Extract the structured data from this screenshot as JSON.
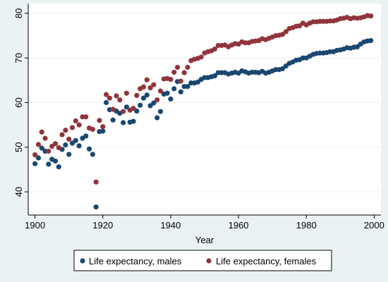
{
  "chart_data": {
    "type": "scatter",
    "title": "",
    "xlabel": "Year",
    "ylabel": "",
    "xlim": [
      1898,
      2002
    ],
    "ylim": [
      34.8,
      82.2
    ],
    "x_ticks": [
      "1900",
      "1920",
      "1940",
      "1960",
      "1980",
      "2000"
    ],
    "y_ticks": [
      "40",
      "50",
      "60",
      "70",
      "80"
    ],
    "grid": true,
    "legend_position": "bottom",
    "series": [
      {
        "name": "Life expectancy, males",
        "color": "#1a476f",
        "points": [
          [
            1900,
            46.3
          ],
          [
            1901,
            47.6
          ],
          [
            1902,
            49.8
          ],
          [
            1903,
            49.1
          ],
          [
            1904,
            46.2
          ],
          [
            1905,
            47.3
          ],
          [
            1906,
            46.9
          ],
          [
            1907,
            45.6
          ],
          [
            1908,
            49.5
          ],
          [
            1909,
            50.5
          ],
          [
            1910,
            48.4
          ],
          [
            1911,
            50.9
          ],
          [
            1912,
            51.5
          ],
          [
            1913,
            50.3
          ],
          [
            1914,
            52.0
          ],
          [
            1915,
            52.5
          ],
          [
            1916,
            49.6
          ],
          [
            1917,
            48.4
          ],
          [
            1918,
            36.6
          ],
          [
            1919,
            53.5
          ],
          [
            1920,
            53.6
          ],
          [
            1921,
            60.0
          ],
          [
            1922,
            58.4
          ],
          [
            1923,
            56.1
          ],
          [
            1924,
            58.1
          ],
          [
            1925,
            57.6
          ],
          [
            1926,
            55.5
          ],
          [
            1927,
            59.0
          ],
          [
            1928,
            55.6
          ],
          [
            1929,
            55.8
          ],
          [
            1930,
            58.1
          ],
          [
            1931,
            59.4
          ],
          [
            1932,
            61.0
          ],
          [
            1933,
            61.7
          ],
          [
            1934,
            59.3
          ],
          [
            1935,
            59.9
          ],
          [
            1936,
            56.6
          ],
          [
            1937,
            58.0
          ],
          [
            1938,
            61.9
          ],
          [
            1939,
            62.1
          ],
          [
            1940,
            60.8
          ],
          [
            1941,
            63.1
          ],
          [
            1942,
            64.7
          ],
          [
            1943,
            62.4
          ],
          [
            1944,
            63.6
          ],
          [
            1945,
            63.6
          ],
          [
            1946,
            64.4
          ],
          [
            1947,
            64.4
          ],
          [
            1948,
            64.6
          ],
          [
            1949,
            65.2
          ],
          [
            1950,
            65.6
          ],
          [
            1951,
            65.6
          ],
          [
            1952,
            65.8
          ],
          [
            1953,
            66.0
          ],
          [
            1954,
            66.7
          ],
          [
            1955,
            66.7
          ],
          [
            1956,
            66.7
          ],
          [
            1957,
            66.4
          ],
          [
            1958,
            66.6
          ],
          [
            1959,
            66.8
          ],
          [
            1960,
            66.6
          ],
          [
            1961,
            67.1
          ],
          [
            1962,
            66.9
          ],
          [
            1963,
            66.6
          ],
          [
            1964,
            66.8
          ],
          [
            1965,
            66.8
          ],
          [
            1966,
            66.7
          ],
          [
            1967,
            67.0
          ],
          [
            1968,
            66.6
          ],
          [
            1969,
            66.8
          ],
          [
            1970,
            67.1
          ],
          [
            1971,
            67.4
          ],
          [
            1972,
            67.4
          ],
          [
            1973,
            67.6
          ],
          [
            1974,
            68.2
          ],
          [
            1975,
            68.8
          ],
          [
            1976,
            69.1
          ],
          [
            1977,
            69.5
          ],
          [
            1978,
            69.6
          ],
          [
            1979,
            70.0
          ],
          [
            1980,
            70.0
          ],
          [
            1981,
            70.4
          ],
          [
            1982,
            70.8
          ],
          [
            1983,
            71.0
          ],
          [
            1984,
            71.1
          ],
          [
            1985,
            71.1
          ],
          [
            1986,
            71.2
          ],
          [
            1987,
            71.4
          ],
          [
            1988,
            71.4
          ],
          [
            1989,
            71.7
          ],
          [
            1990,
            71.8
          ],
          [
            1991,
            72.0
          ],
          [
            1992,
            72.3
          ],
          [
            1993,
            72.2
          ],
          [
            1994,
            72.4
          ],
          [
            1995,
            72.5
          ],
          [
            1996,
            73.1
          ],
          [
            1997,
            73.6
          ],
          [
            1998,
            73.8
          ],
          [
            1999,
            73.9
          ]
        ]
      },
      {
        "name": "Life expectancy, females",
        "color": "#90353b",
        "points": [
          [
            1900,
            48.3
          ],
          [
            1901,
            50.6
          ],
          [
            1902,
            53.4
          ],
          [
            1903,
            52.0
          ],
          [
            1904,
            49.1
          ],
          [
            1905,
            50.2
          ],
          [
            1906,
            50.8
          ],
          [
            1907,
            49.9
          ],
          [
            1908,
            52.8
          ],
          [
            1909,
            53.8
          ],
          [
            1910,
            51.8
          ],
          [
            1911,
            54.4
          ],
          [
            1912,
            55.9
          ],
          [
            1913,
            55.0
          ],
          [
            1914,
            56.8
          ],
          [
            1915,
            56.8
          ],
          [
            1916,
            54.3
          ],
          [
            1917,
            54.0
          ],
          [
            1918,
            42.2
          ],
          [
            1919,
            56.0
          ],
          [
            1920,
            54.6
          ],
          [
            1921,
            61.8
          ],
          [
            1922,
            61.0
          ],
          [
            1923,
            58.5
          ],
          [
            1924,
            61.5
          ],
          [
            1925,
            60.6
          ],
          [
            1926,
            58.0
          ],
          [
            1927,
            62.1
          ],
          [
            1928,
            58.3
          ],
          [
            1929,
            58.7
          ],
          [
            1930,
            61.6
          ],
          [
            1931,
            63.1
          ],
          [
            1932,
            63.5
          ],
          [
            1933,
            65.1
          ],
          [
            1934,
            63.3
          ],
          [
            1935,
            64.0
          ],
          [
            1936,
            60.6
          ],
          [
            1937,
            62.6
          ],
          [
            1938,
            65.3
          ],
          [
            1939,
            65.4
          ],
          [
            1940,
            65.2
          ],
          [
            1941,
            66.8
          ],
          [
            1942,
            67.9
          ],
          [
            1943,
            64.8
          ],
          [
            1944,
            66.7
          ],
          [
            1945,
            67.9
          ],
          [
            1946,
            69.4
          ],
          [
            1947,
            69.7
          ],
          [
            1948,
            69.9
          ],
          [
            1949,
            70.2
          ],
          [
            1950,
            71.1
          ],
          [
            1951,
            71.4
          ],
          [
            1952,
            71.6
          ],
          [
            1953,
            72.0
          ],
          [
            1954,
            72.8
          ],
          [
            1955,
            72.8
          ],
          [
            1956,
            72.9
          ],
          [
            1957,
            72.5
          ],
          [
            1958,
            72.9
          ],
          [
            1959,
            73.2
          ],
          [
            1960,
            73.1
          ],
          [
            1961,
            73.6
          ],
          [
            1962,
            73.4
          ],
          [
            1963,
            73.4
          ],
          [
            1964,
            73.7
          ],
          [
            1965,
            73.8
          ],
          [
            1966,
            73.9
          ],
          [
            1967,
            74.3
          ],
          [
            1968,
            74.1
          ],
          [
            1969,
            74.4
          ],
          [
            1970,
            74.7
          ],
          [
            1971,
            75.0
          ],
          [
            1972,
            75.1
          ],
          [
            1973,
            75.3
          ],
          [
            1974,
            75.9
          ],
          [
            1975,
            76.6
          ],
          [
            1976,
            76.8
          ],
          [
            1977,
            77.1
          ],
          [
            1978,
            77.2
          ],
          [
            1979,
            77.8
          ],
          [
            1980,
            77.4
          ],
          [
            1981,
            77.8
          ],
          [
            1982,
            78.1
          ],
          [
            1983,
            78.1
          ],
          [
            1984,
            78.2
          ],
          [
            1985,
            78.2
          ],
          [
            1986,
            78.2
          ],
          [
            1987,
            78.3
          ],
          [
            1988,
            78.3
          ],
          [
            1989,
            78.5
          ],
          [
            1990,
            78.8
          ],
          [
            1991,
            78.9
          ],
          [
            1992,
            79.1
          ],
          [
            1993,
            78.8
          ],
          [
            1994,
            79.0
          ],
          [
            1995,
            78.9
          ],
          [
            1996,
            79.0
          ],
          [
            1997,
            79.2
          ],
          [
            1998,
            79.5
          ],
          [
            1999,
            79.4
          ]
        ]
      }
    ]
  }
}
